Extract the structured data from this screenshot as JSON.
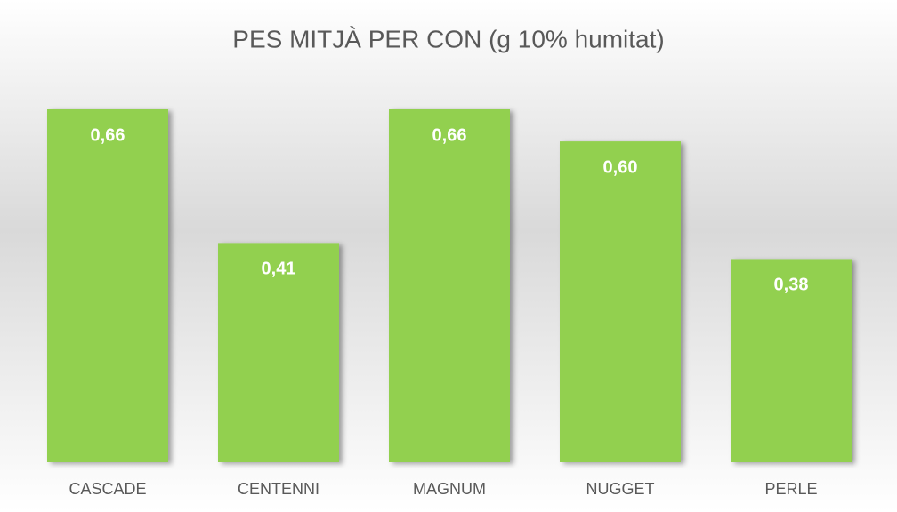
{
  "chart_data": {
    "type": "bar",
    "title": "PES MITJÀ PER CON (g 10% humitat)",
    "categories": [
      "CASCADE",
      "CENTENNI",
      "MAGNUM",
      "NUGGET",
      "PERLE"
    ],
    "values": [
      0.66,
      0.41,
      0.66,
      0.6,
      0.38
    ],
    "value_labels": [
      "0,66",
      "0,41",
      "0,66",
      "0,60",
      "0,38"
    ],
    "color": "#92d050"
  }
}
